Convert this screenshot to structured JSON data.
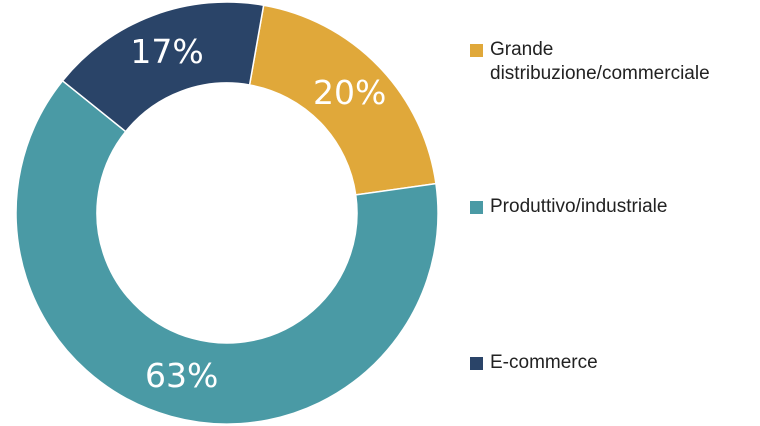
{
  "chart_data": {
    "type": "donut",
    "categories": [
      "Grande distribuzione/commerciale",
      "Produttivo/industriale",
      "E-commerce"
    ],
    "values": [
      20,
      63,
      17
    ],
    "value_labels": [
      "20%",
      "63%",
      "17%"
    ],
    "colors": [
      "#e0a83a",
      "#4a9aa5",
      "#2a4468"
    ],
    "legend": "right"
  }
}
